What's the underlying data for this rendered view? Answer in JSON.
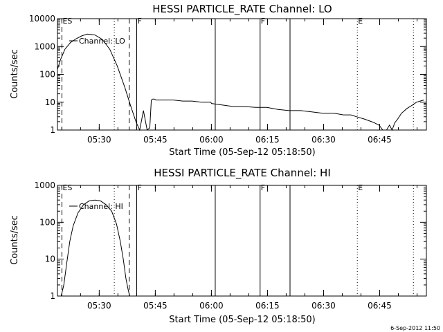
{
  "chart_data": [
    {
      "type": "line",
      "title": "HESSI PARTICLE_RATE Channel: LO",
      "xlabel": "Start Time (05-Sep-12 05:18:50)",
      "ylabel": "Counts/sec",
      "y_scale": "log",
      "ylim": [
        1,
        10000
      ],
      "xlim": [
        "05:18:50",
        "06:57:30"
      ],
      "x_tick_labels": [
        "05:30",
        "05:45",
        "06:00",
        "06:15",
        "06:30",
        "06:45"
      ],
      "x_ticks_min": [
        11.17,
        26.17,
        41.17,
        56.17,
        71.17,
        86.17
      ],
      "y_tick_labels": [
        "1",
        "10",
        "100",
        "1000",
        "10000"
      ],
      "y_ticks": [
        1,
        10,
        100,
        1000,
        10000
      ],
      "grid": false,
      "legend": {
        "label": "Channel: LO",
        "placement": "top-left"
      },
      "series": [
        {
          "name": "Channel: LO",
          "x_min": [
            0.0,
            0.8,
            2.0,
            3.5,
            5.0,
            6.5,
            8.0,
            10.0,
            12.0,
            14.0,
            16.0,
            18.0,
            19.5,
            21.0,
            22.0,
            23.0,
            24.0,
            24.7,
            25.1,
            25.5,
            25.9,
            26.3,
            28.5,
            31.0,
            33.5,
            36.0,
            38.5,
            41.0,
            41.2,
            44.0,
            47.0,
            50.0,
            53.0,
            56.0,
            59.0,
            62.0,
            65.0,
            68.0,
            71.0,
            74.0,
            76.5,
            78.5,
            80.0,
            82.0,
            84.0,
            84.8,
            86.0,
            87.0,
            88.0,
            88.8,
            89.5,
            90.2,
            91.0,
            92.0,
            93.5,
            95.0,
            96.0,
            97.0,
            98.0
          ],
          "counts_per_sec": [
            150,
            330,
            800,
            1400,
            1900,
            2400,
            2800,
            2600,
            1800,
            800,
            200,
            35,
            8,
            2,
            1,
            5,
            1,
            1.2,
            12,
            13,
            13,
            12,
            12,
            12,
            11,
            11,
            10,
            10,
            9,
            8,
            7,
            7,
            6.5,
            6.5,
            5.5,
            5,
            5,
            4.5,
            4,
            4,
            3.5,
            3.5,
            3,
            2.5,
            2,
            1.8,
            1.5,
            1,
            1,
            1.5,
            1,
            1.8,
            2.5,
            4,
            6,
            8,
            10,
            11,
            12
          ]
        }
      ],
      "vertical_markers": [
        {
          "x_min": 1.2,
          "style": "dashed",
          "label": "ES"
        },
        {
          "x_min": 15.2,
          "style": "dotted",
          "label": ""
        },
        {
          "x_min": 19.2,
          "style": "dashed",
          "label": ""
        },
        {
          "x_min": 21.2,
          "style": "solid",
          "label": "F"
        },
        {
          "x_min": 42.2,
          "style": "solid",
          "label": ""
        },
        {
          "x_min": 54.2,
          "style": "solid",
          "label": "F"
        },
        {
          "x_min": 62.2,
          "style": "solid",
          "label": ""
        },
        {
          "x_min": 80.2,
          "style": "dotted",
          "label": "E"
        },
        {
          "x_min": 95.2,
          "style": "dotted",
          "label": ""
        }
      ]
    },
    {
      "type": "line",
      "title": "HESSI PARTICLE_RATE Channel: HI",
      "xlabel": "Start Time (05-Sep-12 05:18:50)",
      "ylabel": "Counts/sec",
      "y_scale": "log",
      "ylim": [
        1,
        1000
      ],
      "xlim": [
        "05:18:50",
        "06:57:30"
      ],
      "x_tick_labels": [
        "05:30",
        "05:45",
        "06:00",
        "06:15",
        "06:30",
        "06:45"
      ],
      "x_ticks_min": [
        11.17,
        26.17,
        41.17,
        56.17,
        71.17,
        86.17
      ],
      "y_tick_labels": [
        "1",
        "10",
        "100",
        "1000"
      ],
      "y_ticks": [
        1,
        10,
        100,
        1000
      ],
      "grid": false,
      "legend": {
        "label": "Channel: HI",
        "placement": "top-left"
      },
      "series": [
        {
          "name": "Channel: HI",
          "x_min": [
            1.0,
            1.7,
            2.5,
            3.3,
            4.2,
            5.5,
            7.0,
            8.5,
            10.0,
            11.5,
            13.0,
            14.5,
            15.8,
            16.8,
            17.6,
            18.3,
            18.9,
            19.3
          ],
          "counts_per_sec": [
            1,
            2,
            8,
            30,
            80,
            180,
            300,
            380,
            400,
            380,
            300,
            200,
            90,
            30,
            10,
            3,
            1.5,
            1
          ]
        }
      ],
      "vertical_markers": [
        {
          "x_min": 1.2,
          "style": "dashed",
          "label": "ES"
        },
        {
          "x_min": 15.2,
          "style": "dotted",
          "label": ""
        },
        {
          "x_min": 19.2,
          "style": "dashed",
          "label": ""
        },
        {
          "x_min": 21.2,
          "style": "solid",
          "label": "F"
        },
        {
          "x_min": 42.2,
          "style": "solid",
          "label": ""
        },
        {
          "x_min": 54.2,
          "style": "solid",
          "label": "F"
        },
        {
          "x_min": 62.2,
          "style": "solid",
          "label": ""
        },
        {
          "x_min": 80.2,
          "style": "dotted",
          "label": "E"
        },
        {
          "x_min": 95.2,
          "style": "dotted",
          "label": ""
        }
      ]
    }
  ],
  "footer": {
    "stamp": "6-Sep-2012 11:50"
  }
}
